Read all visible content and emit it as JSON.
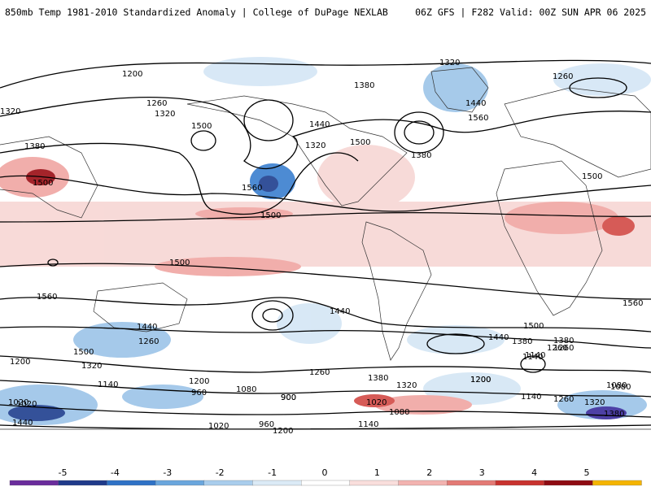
{
  "header": {
    "title_left": "850mb Temp 1981-2010 Standardized Anomaly | College of DuPage NEXLAB",
    "title_right": "06Z GFS | F282 Valid: 00Z SUN APR 06 2025"
  },
  "map": {
    "contour_labels": [
      "1200",
      "1260",
      "1320",
      "1380",
      "1440",
      "1500",
      "1560",
      "1140",
      "1080",
      "1020",
      "960",
      "900",
      "1320",
      "1200",
      "1260",
      "1320",
      "1380",
      "1500",
      "1320",
      "1440",
      "1500",
      "1560",
      "1500",
      "1380",
      "1200",
      "1260",
      "1320",
      "1440",
      "1500",
      "1500",
      "1500",
      "1560",
      "1440",
      "1380",
      "1260",
      "1200",
      "1140",
      "1080",
      "1020",
      "960",
      "1020",
      "900",
      "1200",
      "1140",
      "1260",
      "1320",
      "1380",
      "1140",
      "1080",
      "1200",
      "1260",
      "1320",
      "1380",
      "1500",
      "1560",
      "1440",
      "1380",
      "1260",
      "1140",
      "1080",
      "1020",
      "1440"
    ],
    "anomaly_colors": {
      "strong_cold": "#1f3f8f",
      "cold": "#3a7fcf",
      "cool": "#9cc4e8",
      "slight_cool": "#d4e6f5",
      "slight_warm": "#f7d6d4",
      "warm": "#f0a6a3",
      "hot": "#d24a45",
      "very_hot": "#9b0d14"
    }
  },
  "colorbar": {
    "ticks": [
      "-5",
      "-4",
      "-3",
      "-2",
      "-1",
      "0",
      "1",
      "2",
      "3",
      "4",
      "5"
    ],
    "colors": [
      "#6a2c9c",
      "#1f3a8a",
      "#2f72c6",
      "#6aa6dd",
      "#a9cdec",
      "#dbeaf6",
      "#ffffff",
      "#f9dedc",
      "#f2b3b0",
      "#e37a75",
      "#c8322e",
      "#8e0b12",
      "#f4b400"
    ]
  }
}
